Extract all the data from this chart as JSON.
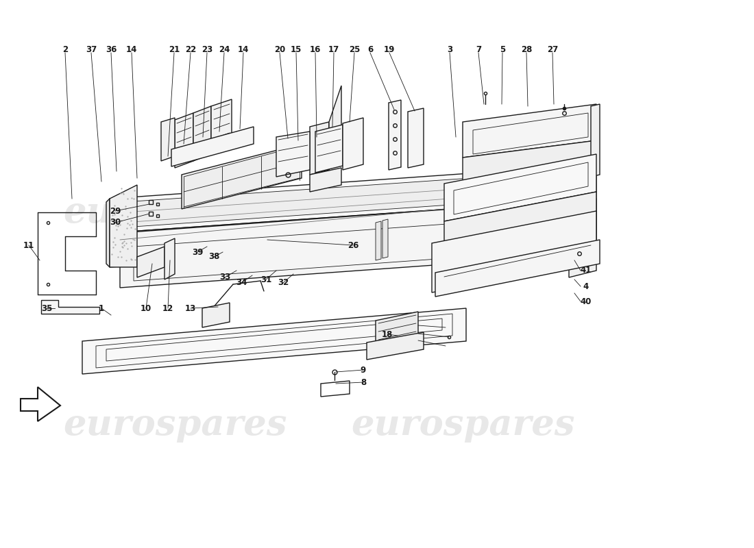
{
  "bg_color": "#ffffff",
  "line_color": "#1a1a1a",
  "watermark": "eurospares",
  "watermark_color": "#cccccc",
  "watermark_alpha": 0.45,
  "watermark_fontsize": 38,
  "label_fontsize": 8.5,
  "lw_main": 1.0,
  "lw_thin": 0.6,
  "top_labels": [
    [
      "2",
      95,
      72
    ],
    [
      "37",
      133,
      72
    ],
    [
      "36",
      162,
      72
    ],
    [
      "14",
      192,
      72
    ],
    [
      "21",
      254,
      72
    ],
    [
      "22",
      278,
      72
    ],
    [
      "23",
      302,
      72
    ],
    [
      "24",
      327,
      72
    ],
    [
      "14",
      355,
      72
    ],
    [
      "20",
      408,
      72
    ],
    [
      "15",
      432,
      72
    ],
    [
      "16",
      460,
      72
    ],
    [
      "17",
      487,
      72
    ],
    [
      "25",
      517,
      72
    ],
    [
      "6",
      540,
      72
    ],
    [
      "19",
      568,
      72
    ],
    [
      "3",
      656,
      72
    ],
    [
      "7",
      698,
      72
    ],
    [
      "5",
      733,
      72
    ],
    [
      "28",
      768,
      72
    ],
    [
      "27",
      806,
      72
    ]
  ],
  "side_labels_right": [
    [
      "41",
      855,
      395
    ],
    [
      "4",
      855,
      418
    ],
    [
      "40",
      855,
      440
    ]
  ],
  "side_labels_left": [
    [
      "11",
      42,
      358
    ],
    [
      "35",
      68,
      450
    ],
    [
      "1",
      148,
      450
    ],
    [
      "10",
      213,
      450
    ],
    [
      "12",
      245,
      450
    ],
    [
      "13",
      278,
      450
    ],
    [
      "29",
      168,
      308
    ],
    [
      "30",
      168,
      325
    ],
    [
      "39",
      288,
      368
    ],
    [
      "38",
      312,
      375
    ],
    [
      "33",
      328,
      405
    ],
    [
      "34",
      352,
      413
    ],
    [
      "31",
      388,
      408
    ],
    [
      "32",
      413,
      413
    ],
    [
      "26",
      515,
      358
    ],
    [
      "18",
      565,
      488
    ],
    [
      "9",
      530,
      540
    ],
    [
      "8",
      530,
      558
    ]
  ]
}
